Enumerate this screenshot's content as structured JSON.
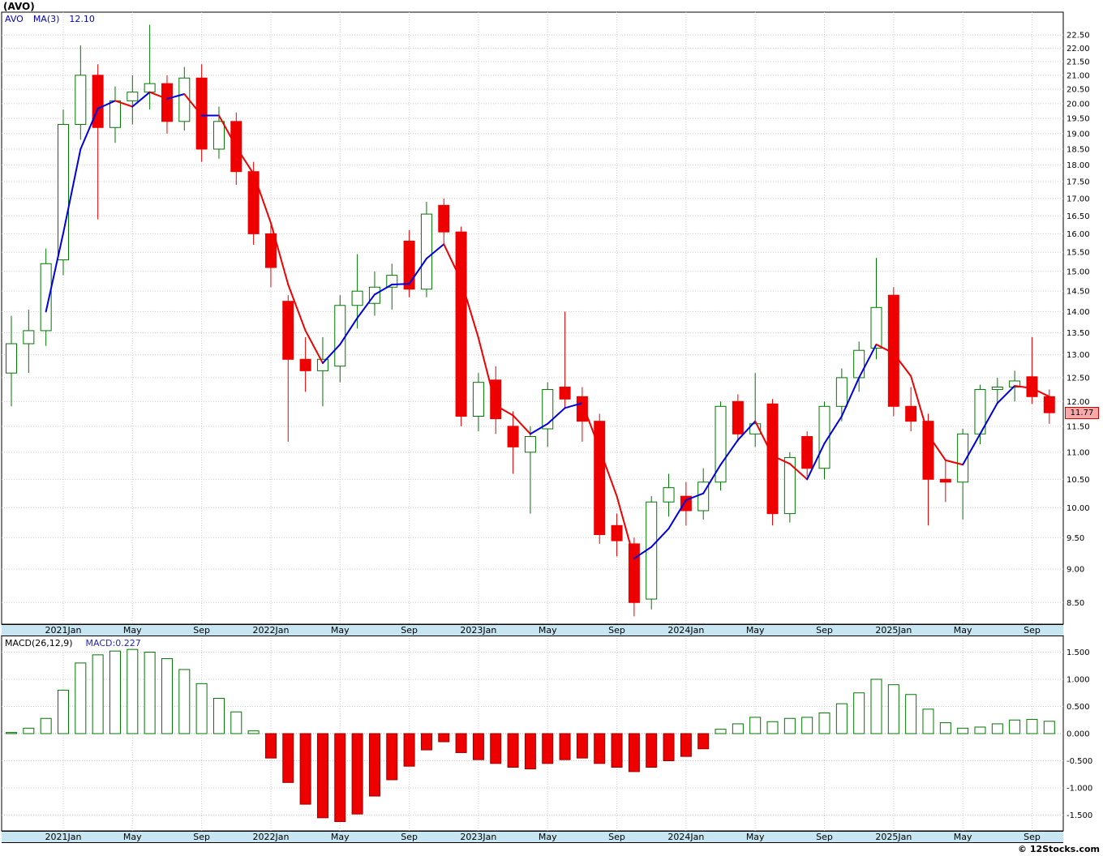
{
  "header": {
    "title": "(AVO)"
  },
  "price_panel": {
    "legend": {
      "symbol": "AVO",
      "ma_label": "MA(3)",
      "ma_value": "12.10"
    },
    "last_price_tag": "11.77"
  },
  "macd_panel": {
    "legend_label": "MACD(26,12,9)",
    "legend_value": "MACD:0.227"
  },
  "footer": {
    "copyright": "© 12Stocks.com"
  },
  "colors": {
    "up_outline": "#007700",
    "up_fill": "#ffffff",
    "down": "#ee0000",
    "ma_up": "#0000dd",
    "ma_down": "#ee0000",
    "grid": "#cccccc",
    "frame": "#000000",
    "band_bg": "#c7e6f2",
    "tag_bg": "#f7a8a8",
    "tag_border": "#d40000",
    "legend_blue": "#0000cc"
  },
  "chart_data": [
    {
      "type": "candlestick",
      "title": "AVO monthly price candlesticks with MA(3) overlay",
      "y_scale": "log",
      "ylim": [
        8.19,
        23.4
      ],
      "grid": true,
      "legend_position": "top-left",
      "ma_period": 3,
      "last_price": 11.77,
      "y_tick_labels": [
        "22.50",
        "22.00",
        "21.50",
        "21.00",
        "20.50",
        "20.00",
        "19.50",
        "19.00",
        "18.50",
        "18.00",
        "17.50",
        "17.00",
        "16.50",
        "16.00",
        "15.50",
        "15.00",
        "14.50",
        "14.00",
        "13.50",
        "13.00",
        "12.50",
        "12.00",
        "11.50",
        "11.00",
        "10.50",
        "10.00",
        "9.50",
        "9.00",
        "8.50"
      ],
      "x_tick_labels": [
        "2021Jan",
        "May",
        "Sep",
        "2022Jan",
        "May",
        "Sep",
        "2023Jan",
        "May",
        "Sep",
        "2024Jan",
        "May",
        "Sep",
        "2025Jan",
        "May",
        "Sep"
      ],
      "x_tick_indices": [
        3,
        7,
        11,
        15,
        19,
        23,
        27,
        31,
        35,
        39,
        43,
        47,
        51,
        55,
        59
      ],
      "months": [
        "2020-10",
        "2020-11",
        "2020-12",
        "2021-01",
        "2021-02",
        "2021-03",
        "2021-04",
        "2021-05",
        "2021-06",
        "2021-07",
        "2021-08",
        "2021-09",
        "2021-10",
        "2021-11",
        "2021-12",
        "2022-01",
        "2022-02",
        "2022-03",
        "2022-04",
        "2022-05",
        "2022-06",
        "2022-07",
        "2022-08",
        "2022-09",
        "2022-10",
        "2022-11",
        "2022-12",
        "2023-01",
        "2023-02",
        "2023-03",
        "2023-04",
        "2023-05",
        "2023-06",
        "2023-07",
        "2023-08",
        "2023-09",
        "2023-10",
        "2023-11",
        "2023-12",
        "2024-01",
        "2024-02",
        "2024-03",
        "2024-04",
        "2024-05",
        "2024-06",
        "2024-07",
        "2024-08",
        "2024-09",
        "2024-10",
        "2024-11",
        "2024-12",
        "2025-01",
        "2025-02",
        "2025-03",
        "2025-04",
        "2025-05",
        "2025-06",
        "2025-07",
        "2025-08",
        "2025-09",
        "2025-10"
      ],
      "ohlc": [
        [
          12.6,
          13.9,
          11.9,
          13.25
        ],
        [
          13.25,
          14.05,
          12.6,
          13.55
        ],
        [
          13.55,
          15.6,
          13.2,
          15.2
        ],
        [
          15.3,
          19.8,
          14.9,
          19.3
        ],
        [
          19.3,
          22.1,
          18.8,
          21.0
        ],
        [
          21.0,
          21.4,
          16.4,
          19.2
        ],
        [
          19.2,
          20.6,
          18.7,
          20.1
        ],
        [
          20.1,
          21.0,
          19.3,
          20.4
        ],
        [
          20.4,
          22.9,
          19.8,
          20.7
        ],
        [
          20.7,
          21.0,
          19.0,
          19.4
        ],
        [
          19.4,
          21.3,
          19.1,
          20.9
        ],
        [
          20.9,
          21.4,
          18.1,
          18.5
        ],
        [
          18.5,
          19.9,
          18.2,
          19.4
        ],
        [
          19.4,
          19.7,
          17.4,
          17.8
        ],
        [
          17.8,
          18.1,
          15.7,
          16.0
        ],
        [
          16.0,
          16.3,
          14.6,
          15.1
        ],
        [
          14.25,
          14.4,
          11.2,
          12.9
        ],
        [
          12.9,
          13.4,
          12.2,
          12.65
        ],
        [
          12.65,
          13.4,
          11.9,
          12.9
        ],
        [
          12.75,
          14.4,
          12.4,
          14.15
        ],
        [
          14.15,
          15.45,
          13.6,
          14.5
        ],
        [
          14.2,
          15.0,
          13.9,
          14.6
        ],
        [
          14.6,
          15.2,
          14.05,
          14.9
        ],
        [
          15.8,
          16.1,
          14.35,
          14.55
        ],
        [
          14.55,
          16.9,
          14.35,
          16.55
        ],
        [
          16.8,
          17.0,
          15.7,
          16.05
        ],
        [
          16.05,
          16.2,
          11.5,
          11.7
        ],
        [
          11.7,
          12.6,
          11.4,
          12.4
        ],
        [
          12.45,
          12.75,
          11.35,
          11.65
        ],
        [
          11.5,
          11.8,
          10.6,
          11.1
        ],
        [
          11.0,
          11.5,
          9.9,
          11.3
        ],
        [
          11.45,
          12.4,
          11.1,
          12.25
        ],
        [
          12.3,
          14.0,
          11.85,
          12.05
        ],
        [
          12.1,
          12.3,
          11.2,
          11.6
        ],
        [
          11.6,
          11.75,
          9.4,
          9.55
        ],
        [
          9.7,
          9.9,
          9.2,
          9.45
        ],
        [
          9.4,
          9.5,
          8.3,
          8.5
        ],
        [
          8.55,
          10.2,
          8.4,
          10.1
        ],
        [
          10.1,
          10.6,
          9.85,
          10.35
        ],
        [
          10.2,
          10.45,
          9.7,
          9.95
        ],
        [
          9.95,
          10.7,
          9.8,
          10.45
        ],
        [
          10.45,
          12.0,
          10.3,
          11.9
        ],
        [
          12.0,
          12.15,
          11.2,
          11.35
        ],
        [
          11.35,
          12.6,
          11.1,
          11.55
        ],
        [
          11.95,
          12.05,
          9.7,
          9.9
        ],
        [
          9.9,
          11.0,
          9.75,
          10.9
        ],
        [
          11.3,
          11.4,
          10.55,
          10.7
        ],
        [
          10.7,
          12.0,
          10.5,
          11.9
        ],
        [
          11.9,
          12.7,
          11.6,
          12.5
        ],
        [
          12.5,
          13.3,
          12.2,
          13.1
        ],
        [
          13.15,
          15.35,
          12.9,
          14.1
        ],
        [
          14.4,
          14.6,
          11.7,
          11.9
        ],
        [
          11.9,
          12.3,
          11.4,
          11.6
        ],
        [
          11.6,
          11.75,
          9.7,
          10.5
        ],
        [
          10.5,
          10.85,
          10.1,
          10.45
        ],
        [
          10.45,
          11.45,
          9.8,
          11.35
        ],
        [
          11.35,
          12.35,
          11.15,
          12.25
        ],
        [
          12.25,
          12.5,
          11.95,
          12.3
        ],
        [
          12.3,
          12.65,
          12.0,
          12.43
        ],
        [
          12.52,
          13.4,
          11.95,
          12.1
        ],
        [
          12.1,
          12.25,
          11.55,
          11.77
        ]
      ]
    },
    {
      "type": "bar",
      "title": "MACD(26,12,9) histogram",
      "ylim": [
        -1.78,
        1.81
      ],
      "grid": true,
      "final_value": 0.227,
      "y_tick_labels": [
        "1.500",
        "1.000",
        "0.500",
        "0.000",
        "-0.500",
        "-1.000",
        "-1.500"
      ],
      "y_tick_values": [
        1.5,
        1.0,
        0.5,
        0.0,
        -0.5,
        -1.0,
        -1.5
      ],
      "values": [
        0.02,
        0.1,
        0.28,
        0.8,
        1.3,
        1.45,
        1.52,
        1.55,
        1.5,
        1.38,
        1.18,
        0.92,
        0.65,
        0.4,
        0.05,
        -0.45,
        -0.9,
        -1.3,
        -1.55,
        -1.62,
        -1.48,
        -1.15,
        -0.85,
        -0.6,
        -0.3,
        -0.15,
        -0.35,
        -0.48,
        -0.55,
        -0.62,
        -0.65,
        -0.55,
        -0.48,
        -0.45,
        -0.55,
        -0.62,
        -0.7,
        -0.62,
        -0.5,
        -0.42,
        -0.28,
        0.08,
        0.18,
        0.3,
        0.22,
        0.28,
        0.3,
        0.38,
        0.55,
        0.75,
        1.0,
        0.9,
        0.72,
        0.45,
        0.2,
        0.1,
        0.12,
        0.18,
        0.25,
        0.26,
        0.227
      ]
    }
  ]
}
